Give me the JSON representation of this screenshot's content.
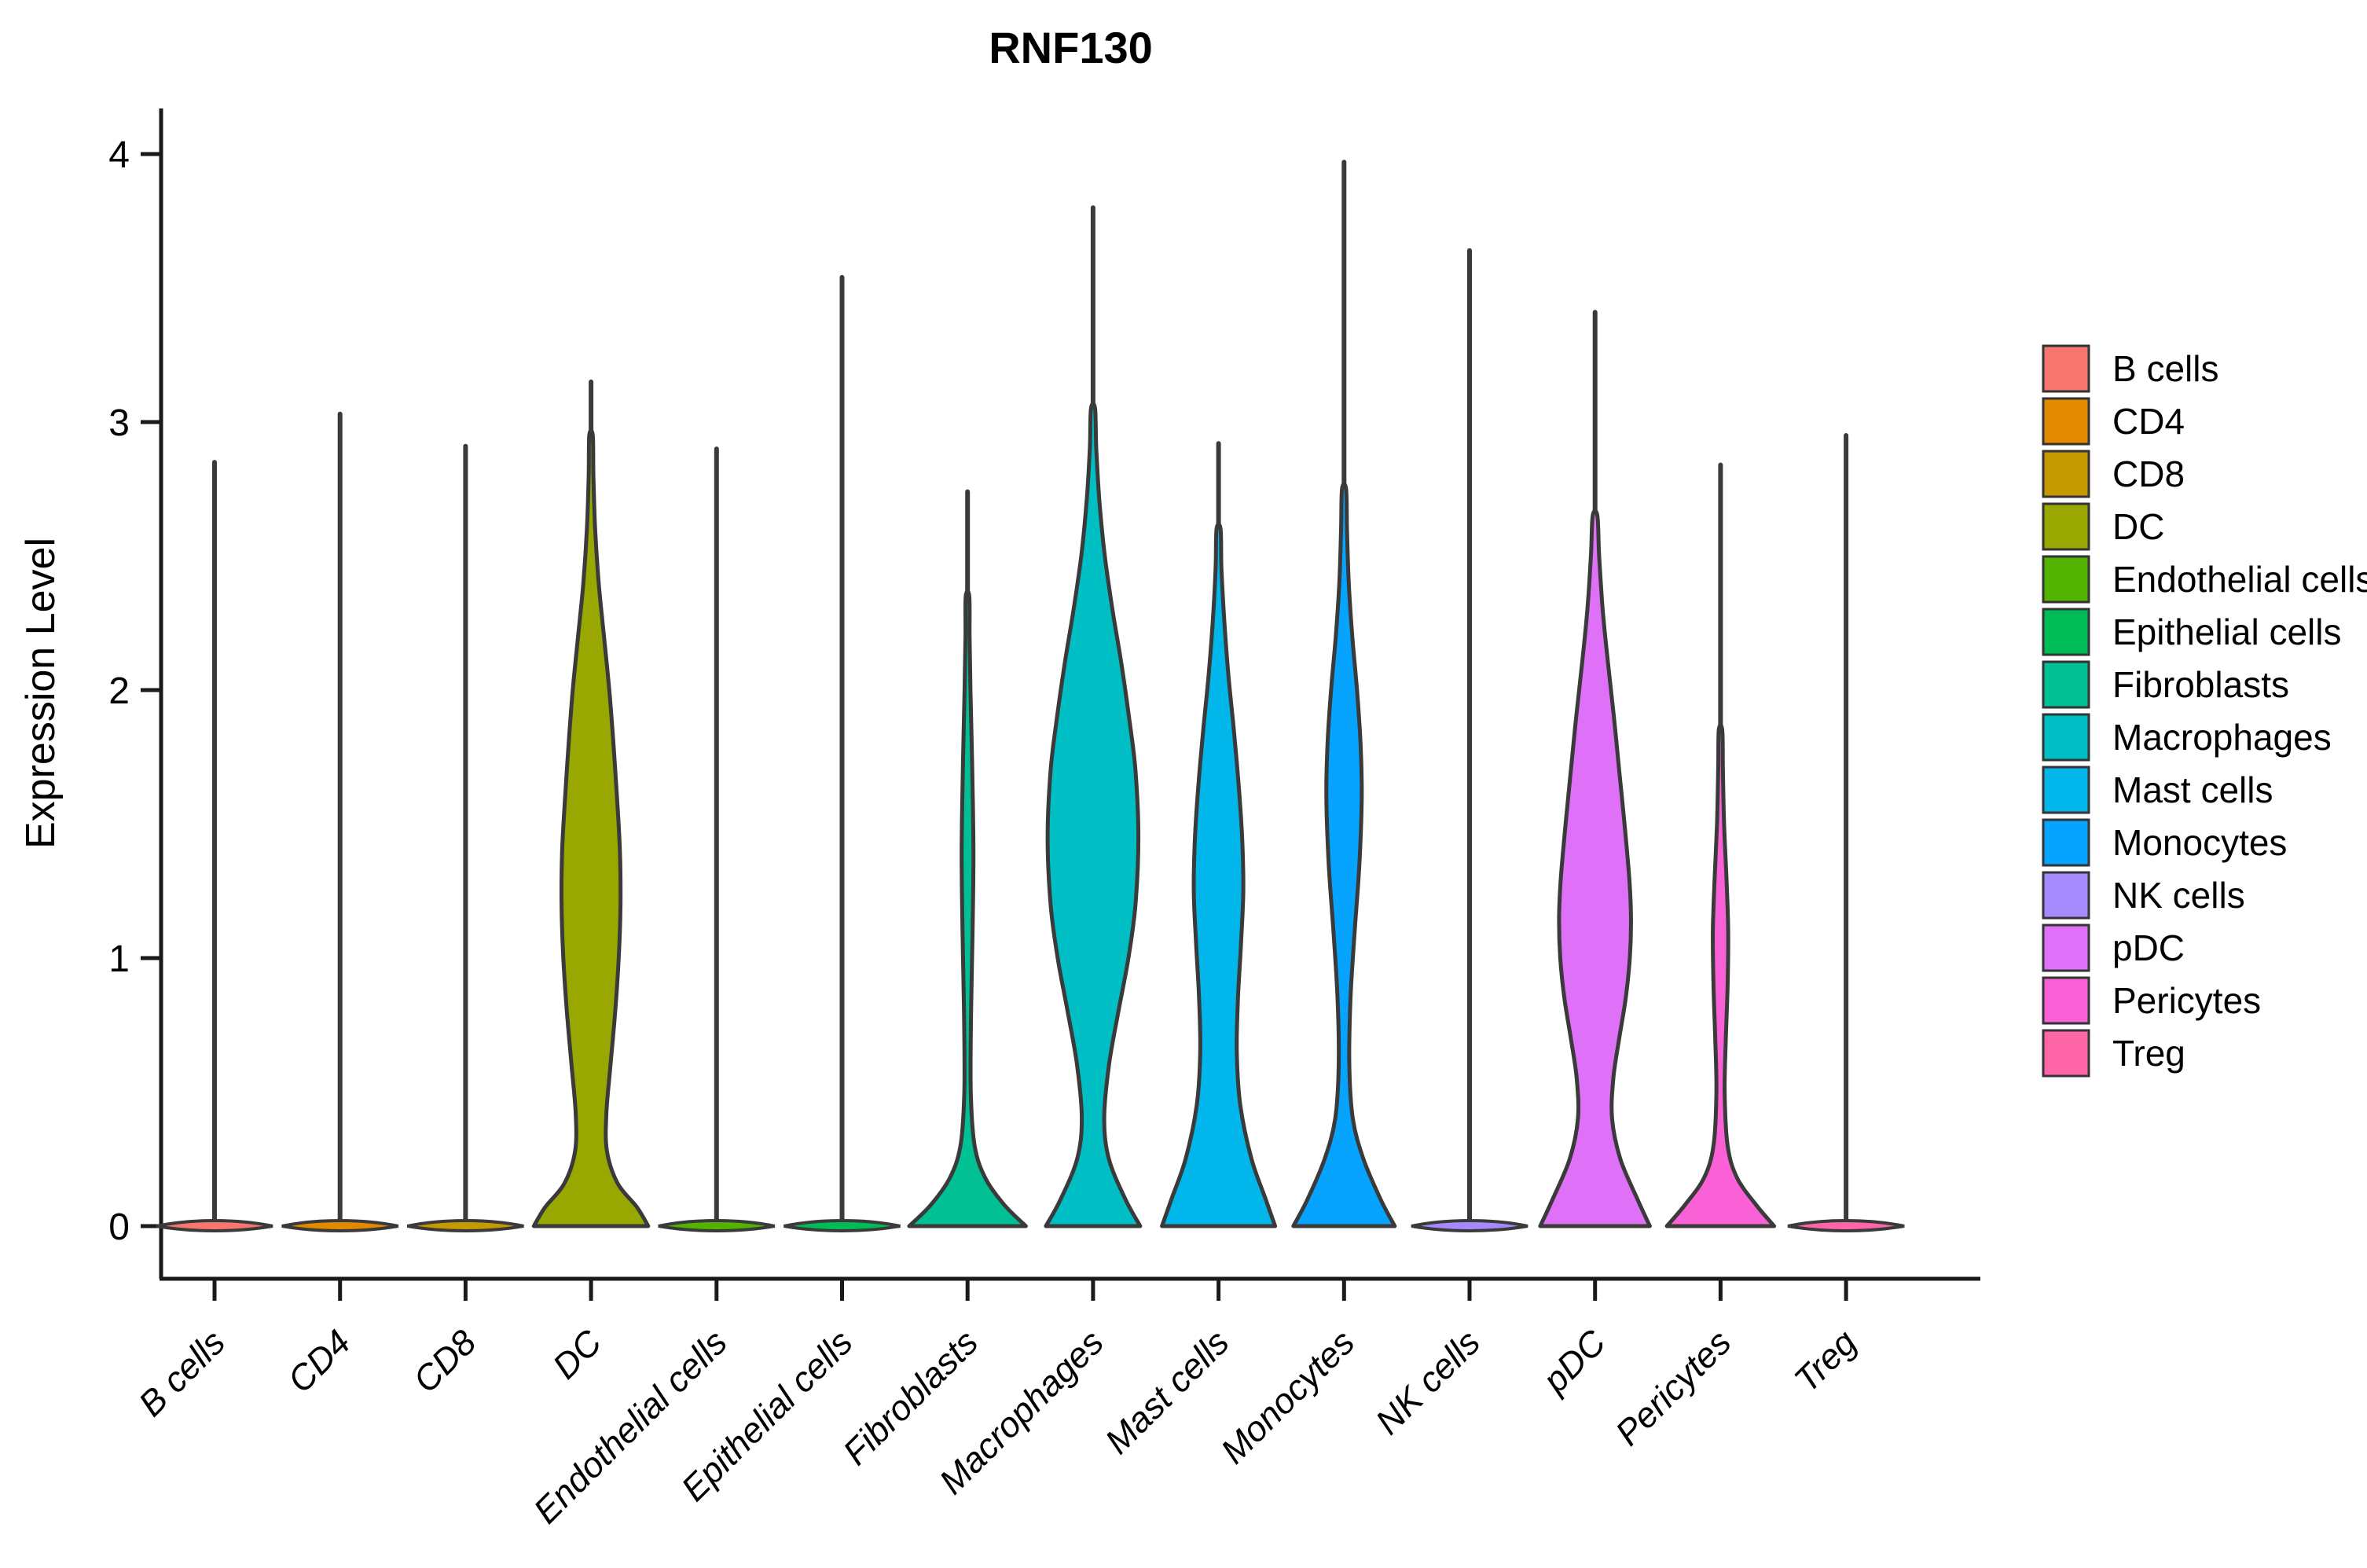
{
  "title": "RNF130",
  "y_axis": {
    "label": "Expression Level",
    "tick_labels": [
      "0",
      "1",
      "2",
      "3",
      "4"
    ]
  },
  "x_axis": {
    "tick_labels": [
      "B cells",
      "CD4",
      "CD8",
      "DC",
      "Endothelial cells",
      "Epithelial cells",
      "Fibroblasts",
      "Macrophages",
      "Mast cells",
      "Monocytes",
      "NK cells",
      "pDC",
      "Pericytes",
      "Treg"
    ]
  },
  "legend": {
    "entries": [
      {
        "label": "B cells",
        "color": "#F8766D"
      },
      {
        "label": "CD4",
        "color": "#E38900"
      },
      {
        "label": "CD8",
        "color": "#C49A00"
      },
      {
        "label": "DC",
        "color": "#99A800"
      },
      {
        "label": "Endothelial cells",
        "color": "#53B400"
      },
      {
        "label": "Epithelial cells",
        "color": "#00BC56"
      },
      {
        "label": "Fibroblasts",
        "color": "#00C094"
      },
      {
        "label": "Macrophages",
        "color": "#00BFC4"
      },
      {
        "label": "Mast cells",
        "color": "#00B6EB"
      },
      {
        "label": "Monocytes",
        "color": "#06A4FF"
      },
      {
        "label": "NK cells",
        "color": "#A58AFF"
      },
      {
        "label": "pDC",
        "color": "#DF70F8"
      },
      {
        "label": "Pericytes",
        "color": "#FB61D7"
      },
      {
        "label": "Treg",
        "color": "#FF66A8"
      }
    ]
  },
  "chart_data": {
    "type": "violin",
    "title": "RNF130",
    "xlabel": "",
    "ylabel": "Expression Level",
    "ylim": [
      0,
      4
    ],
    "yticks": [
      0,
      1,
      2,
      3,
      4
    ],
    "grid": false,
    "legend_position": "right",
    "outline_color": "#3A3A3A",
    "axis_color": "#1a1a1a",
    "categories": [
      "B cells",
      "CD4",
      "CD8",
      "DC",
      "Endothelial cells",
      "Epithelial cells",
      "Fibroblasts",
      "Macrophages",
      "Mast cells",
      "Monocytes",
      "NK cells",
      "pDC",
      "Pericytes",
      "Treg"
    ],
    "series": [
      {
        "name": "B cells",
        "color": "#F8766D",
        "max_expression": 2.85,
        "body_profile": null
      },
      {
        "name": "CD4",
        "color": "#E38900",
        "max_expression": 3.03,
        "body_profile": null
      },
      {
        "name": "CD8",
        "color": "#C49A00",
        "max_expression": 2.91,
        "body_profile": null
      },
      {
        "name": "DC",
        "color": "#99A800",
        "max_expression": 3.15,
        "body_profile": [
          [
            0,
            0.97
          ],
          [
            0.07,
            0.78
          ],
          [
            0.16,
            0.45
          ],
          [
            0.28,
            0.27
          ],
          [
            0.42,
            0.26
          ],
          [
            0.6,
            0.33
          ],
          [
            0.8,
            0.41
          ],
          [
            1.0,
            0.47
          ],
          [
            1.2,
            0.5
          ],
          [
            1.4,
            0.49
          ],
          [
            1.6,
            0.44
          ],
          [
            1.8,
            0.38
          ],
          [
            2.0,
            0.31
          ],
          [
            2.2,
            0.22
          ],
          [
            2.4,
            0.13
          ],
          [
            2.6,
            0.07
          ],
          [
            2.8,
            0.04
          ],
          [
            2.95,
            0.03
          ]
        ]
      },
      {
        "name": "Endothelial cells",
        "color": "#53B400",
        "max_expression": 2.9,
        "body_profile": null
      },
      {
        "name": "Epithelial cells",
        "color": "#00BC56",
        "max_expression": 3.54,
        "body_profile": null
      },
      {
        "name": "Fibroblasts",
        "color": "#00C094",
        "max_expression": 2.74,
        "body_profile": [
          [
            0,
            0.99
          ],
          [
            0.08,
            0.62
          ],
          [
            0.18,
            0.3
          ],
          [
            0.3,
            0.12
          ],
          [
            0.5,
            0.055
          ],
          [
            0.8,
            0.06
          ],
          [
            1.1,
            0.085
          ],
          [
            1.4,
            0.1
          ],
          [
            1.7,
            0.08
          ],
          [
            2.0,
            0.05
          ],
          [
            2.2,
            0.035
          ],
          [
            2.35,
            0.03
          ]
        ]
      },
      {
        "name": "Macrophages",
        "color": "#00BFC4",
        "max_expression": 3.8,
        "body_profile": [
          [
            0,
            0.8
          ],
          [
            0.1,
            0.55
          ],
          [
            0.25,
            0.27
          ],
          [
            0.4,
            0.19
          ],
          [
            0.6,
            0.27
          ],
          [
            0.8,
            0.43
          ],
          [
            1.0,
            0.6
          ],
          [
            1.2,
            0.72
          ],
          [
            1.45,
            0.77
          ],
          [
            1.7,
            0.72
          ],
          [
            1.9,
            0.61
          ],
          [
            2.1,
            0.48
          ],
          [
            2.3,
            0.33
          ],
          [
            2.5,
            0.2
          ],
          [
            2.7,
            0.11
          ],
          [
            2.9,
            0.055
          ],
          [
            3.05,
            0.035
          ]
        ]
      },
      {
        "name": "Mast cells",
        "color": "#00B6EB",
        "max_expression": 2.92,
        "body_profile": [
          [
            0,
            0.96
          ],
          [
            0.1,
            0.8
          ],
          [
            0.25,
            0.56
          ],
          [
            0.45,
            0.37
          ],
          [
            0.65,
            0.31
          ],
          [
            0.85,
            0.33
          ],
          [
            1.05,
            0.38
          ],
          [
            1.25,
            0.42
          ],
          [
            1.45,
            0.4
          ],
          [
            1.65,
            0.34
          ],
          [
            1.85,
            0.26
          ],
          [
            2.05,
            0.17
          ],
          [
            2.25,
            0.1
          ],
          [
            2.45,
            0.05
          ],
          [
            2.6,
            0.035
          ]
        ]
      },
      {
        "name": "Monocytes",
        "color": "#06A4FF",
        "max_expression": 3.97,
        "body_profile": [
          [
            0,
            0.86
          ],
          [
            0.1,
            0.62
          ],
          [
            0.25,
            0.33
          ],
          [
            0.4,
            0.15
          ],
          [
            0.6,
            0.09
          ],
          [
            0.85,
            0.11
          ],
          [
            1.1,
            0.18
          ],
          [
            1.35,
            0.26
          ],
          [
            1.6,
            0.3
          ],
          [
            1.8,
            0.28
          ],
          [
            2.0,
            0.22
          ],
          [
            2.2,
            0.14
          ],
          [
            2.4,
            0.08
          ],
          [
            2.6,
            0.05
          ],
          [
            2.75,
            0.035
          ]
        ]
      },
      {
        "name": "NK cells",
        "color": "#A58AFF",
        "max_expression": 3.64,
        "body_profile": null
      },
      {
        "name": "pDC",
        "color": "#DF70F8",
        "max_expression": 3.41,
        "body_profile": [
          [
            0,
            0.93
          ],
          [
            0.1,
            0.72
          ],
          [
            0.25,
            0.43
          ],
          [
            0.4,
            0.29
          ],
          [
            0.55,
            0.31
          ],
          [
            0.7,
            0.41
          ],
          [
            0.85,
            0.52
          ],
          [
            1.0,
            0.59
          ],
          [
            1.15,
            0.61
          ],
          [
            1.3,
            0.58
          ],
          [
            1.5,
            0.5
          ],
          [
            1.7,
            0.41
          ],
          [
            1.9,
            0.32
          ],
          [
            2.1,
            0.22
          ],
          [
            2.3,
            0.13
          ],
          [
            2.5,
            0.07
          ],
          [
            2.65,
            0.04
          ]
        ]
      },
      {
        "name": "Pericytes",
        "color": "#FB61D7",
        "max_expression": 2.84,
        "body_profile": [
          [
            0,
            0.91
          ],
          [
            0.08,
            0.6
          ],
          [
            0.18,
            0.28
          ],
          [
            0.3,
            0.12
          ],
          [
            0.5,
            0.07
          ],
          [
            0.7,
            0.09
          ],
          [
            0.9,
            0.12
          ],
          [
            1.1,
            0.13
          ],
          [
            1.3,
            0.1
          ],
          [
            1.5,
            0.06
          ],
          [
            1.7,
            0.04
          ],
          [
            1.85,
            0.03
          ]
        ]
      },
      {
        "name": "Treg",
        "color": "#FF66A8",
        "max_expression": 2.95,
        "body_profile": null
      }
    ]
  }
}
